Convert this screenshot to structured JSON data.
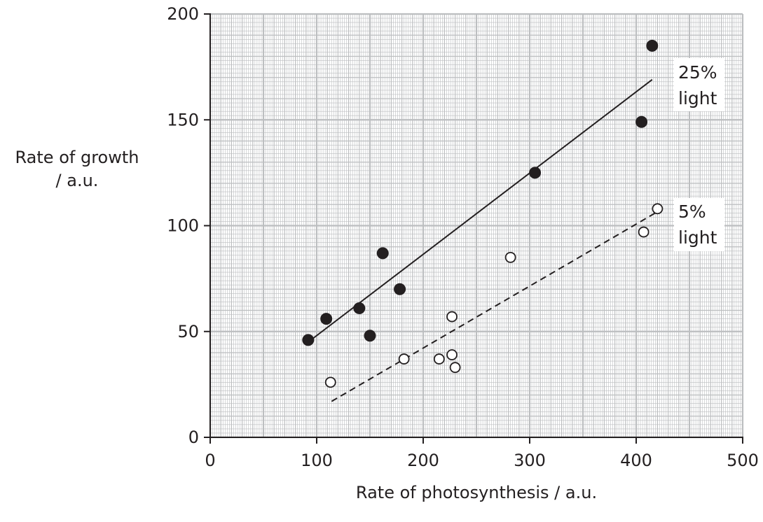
{
  "chart_data": {
    "type": "scatter",
    "xlabel": "Rate of photosynthesis / a.u.",
    "ylabel_line1": "Rate of growth",
    "ylabel_line2": "/ a.u.",
    "xlim": [
      0,
      500
    ],
    "ylim": [
      0,
      200
    ],
    "x_ticks": [
      0,
      100,
      200,
      300,
      400,
      500
    ],
    "y_ticks": [
      0,
      50,
      100,
      150,
      200
    ],
    "grid": true,
    "series": [
      {
        "name_line1": "25%",
        "name_line2": "light",
        "marker": "filled-circle",
        "points": [
          [
            92,
            46
          ],
          [
            109,
            56
          ],
          [
            140,
            61
          ],
          [
            150,
            48
          ],
          [
            162,
            87
          ],
          [
            178,
            70
          ],
          [
            305,
            125
          ],
          [
            405,
            149
          ],
          [
            415,
            185
          ]
        ],
        "trend": {
          "style": "solid",
          "from": [
            92,
            45
          ],
          "to": [
            415,
            169
          ]
        }
      },
      {
        "name_line1": "5%",
        "name_line2": "light",
        "marker": "open-circle",
        "points": [
          [
            113,
            26
          ],
          [
            182,
            37
          ],
          [
            215,
            37
          ],
          [
            227,
            57
          ],
          [
            227,
            39
          ],
          [
            230,
            33
          ],
          [
            282,
            85
          ],
          [
            407,
            97
          ],
          [
            420,
            108
          ]
        ],
        "trend": {
          "style": "dashed",
          "from": [
            114,
            17
          ],
          "to": [
            418,
            106
          ]
        }
      }
    ]
  }
}
